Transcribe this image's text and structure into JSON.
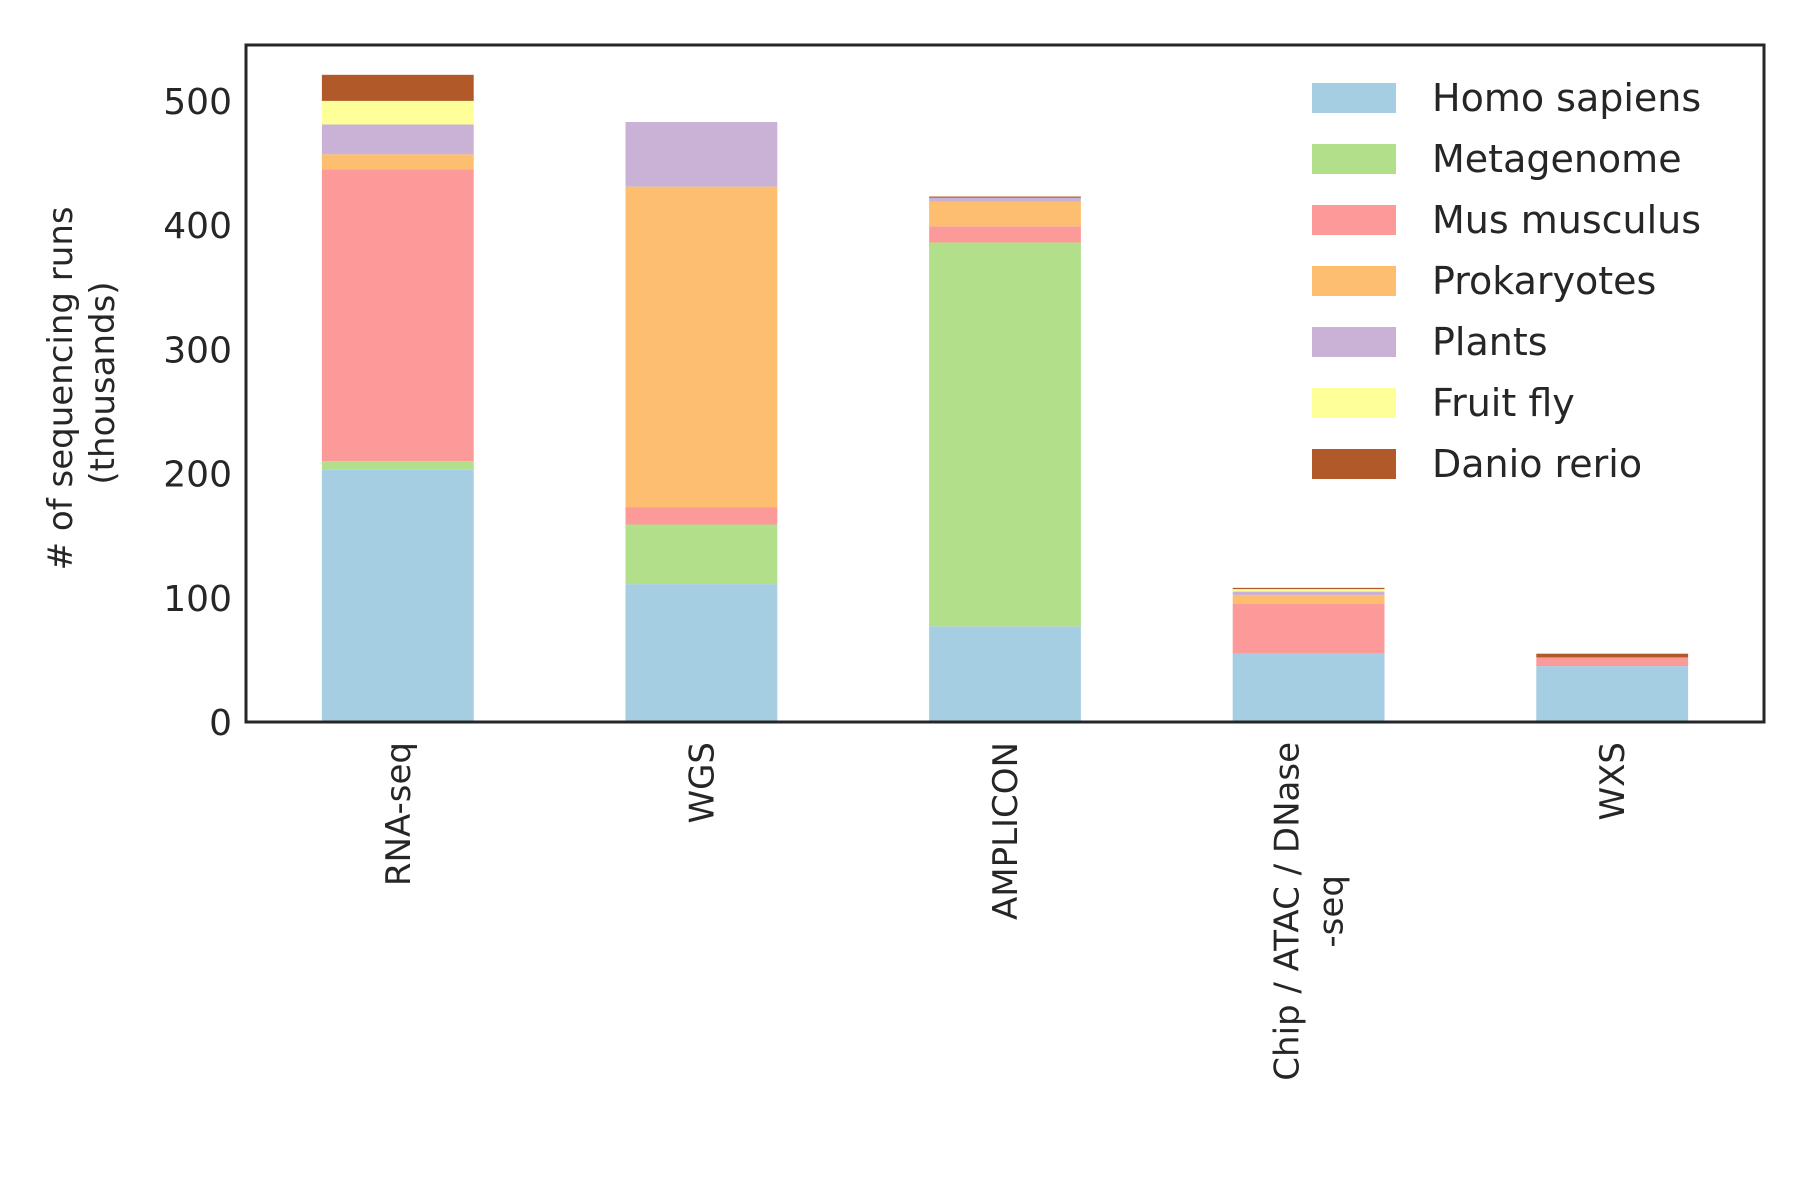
{
  "chart_data": {
    "type": "bar",
    "stacked": true,
    "categories": [
      "RNA-seq",
      "WGS",
      "AMPLICON",
      "Chip / ATAC / DNase -seq",
      "WXS"
    ],
    "category_lines": [
      [
        "RNA-seq"
      ],
      [
        "WGS"
      ],
      [
        "AMPLICON"
      ],
      [
        "Chip / ATAC / DNase",
        "-seq"
      ],
      [
        "WXS"
      ]
    ],
    "series": [
      {
        "name": "Homo sapiens",
        "color": "#a6cee3",
        "values": [
          203,
          111,
          77,
          55,
          45
        ]
      },
      {
        "name": "Metagenome",
        "color": "#b2df8a",
        "values": [
          7,
          48,
          309,
          0,
          0
        ]
      },
      {
        "name": "Mus musculus",
        "color": "#fb9a99",
        "values": [
          235,
          14,
          13,
          40,
          7
        ]
      },
      {
        "name": "Prokaryotes",
        "color": "#fdbf6f",
        "values": [
          12,
          258,
          20,
          7,
          0
        ]
      },
      {
        "name": "Plants",
        "color": "#cab2d6",
        "values": [
          24,
          52,
          3,
          3,
          0
        ]
      },
      {
        "name": "Fruit fly",
        "color": "#ffff99",
        "values": [
          19,
          0,
          0,
          2,
          0
        ]
      },
      {
        "name": "Danio rerio",
        "color": "#b15928",
        "values": [
          21,
          0,
          1,
          1,
          3
        ]
      }
    ],
    "ylabel_lines": [
      "# of sequencing runs",
      "(thousands)"
    ],
    "yticks": [
      0,
      100,
      200,
      300,
      400,
      500
    ],
    "ylim": [
      0,
      545
    ],
    "grid": false,
    "legend_position": "top-right"
  }
}
